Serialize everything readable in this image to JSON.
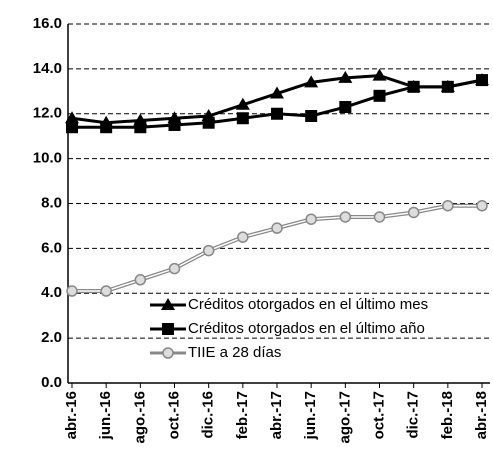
{
  "chart_data": {
    "type": "line",
    "categories": [
      "abr.-16",
      "jun.-16",
      "ago.-16",
      "oct.-16",
      "dic.-16",
      "feb.-17",
      "abr.-17",
      "jun.-17",
      "ago.-17",
      "oct.-17",
      "dic.-17",
      "feb.-18",
      "abr.-18"
    ],
    "series": [
      {
        "name": "Créditos otorgados en el último mes",
        "color": "#000000",
        "marker": "triangle",
        "values": [
          11.8,
          11.6,
          11.7,
          11.8,
          11.9,
          12.4,
          12.9,
          13.4,
          13.6,
          13.7,
          13.2,
          13.2,
          13.5
        ]
      },
      {
        "name": "Créditos otorgados en el último año",
        "color": "#000000",
        "marker": "square",
        "values": [
          11.4,
          11.4,
          11.4,
          11.5,
          11.6,
          11.8,
          12.0,
          11.9,
          12.3,
          12.8,
          13.2,
          13.2,
          13.5
        ]
      },
      {
        "name": "TIIE a 28 días",
        "color": "#888888",
        "marker": "circle",
        "values": [
          4.1,
          4.1,
          4.6,
          5.1,
          5.9,
          6.5,
          6.9,
          7.3,
          7.4,
          7.4,
          7.6,
          7.9,
          7.9
        ]
      }
    ],
    "ylim": [
      0,
      16
    ],
    "yticks": [
      {
        "value": 0,
        "label": "0.0"
      },
      {
        "value": 2,
        "label": "2.0"
      },
      {
        "value": 4,
        "label": "4.0"
      },
      {
        "value": 6,
        "label": "6.0"
      },
      {
        "value": 8,
        "label": "8.0"
      },
      {
        "value": 10,
        "label": "10.0"
      },
      {
        "value": 12,
        "label": "12.0"
      },
      {
        "value": 14,
        "label": "14.0"
      },
      {
        "value": 16,
        "label": "16.0"
      }
    ],
    "grid": true,
    "legend": "lower right"
  }
}
